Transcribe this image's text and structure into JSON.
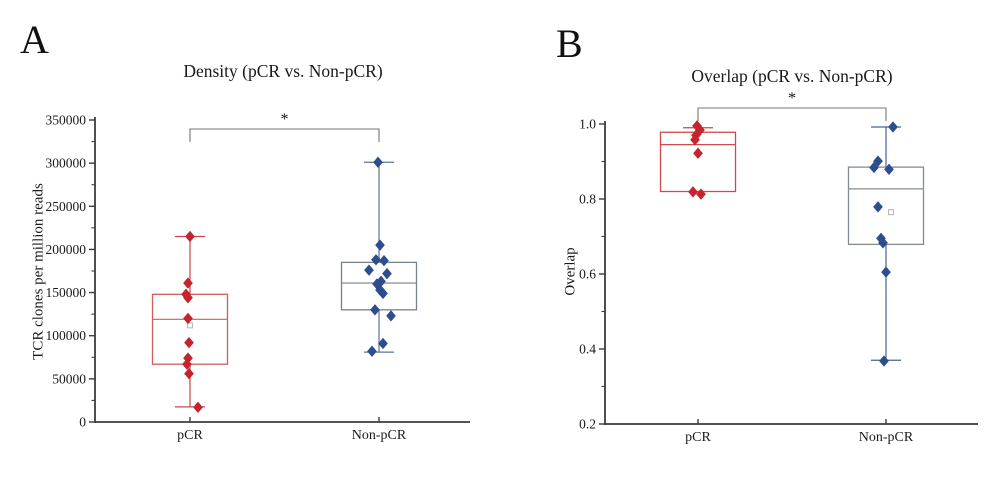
{
  "figure": {
    "background": "#ffffff",
    "axis_color": "#3c3c3c",
    "bracket_color": "#757575"
  },
  "chart_data": [
    {
      "type": "box",
      "panel_label": "A",
      "title": "Density (pCR vs. Non-pCR)",
      "ylabel": "TCR clones per million reads",
      "categories": [
        "pCR",
        "Non-pCR"
      ],
      "ylim": [
        0,
        350000
      ],
      "y_major_step": 50000,
      "y_minor_step": 25000,
      "y_tick_labels": [
        "0",
        "50000",
        "100000",
        "150000",
        "200000",
        "250000",
        "300000",
        "350000"
      ],
      "significance": "*",
      "grid": false,
      "groups": [
        {
          "name": "pCR",
          "point_color": "#c4242e",
          "box_color": "#d25c5c",
          "whisker_color": "#c94747",
          "q1": 67000,
          "median": 119000,
          "q3": 148000,
          "whisker_low": 17500,
          "whisker_high": 215000,
          "mean": 112000,
          "mean_dx": 0,
          "points": [
            [
              215000,
              0
            ],
            [
              161000,
              -2
            ],
            [
              148000,
              -4
            ],
            [
              144000,
              -2
            ],
            [
              120000,
              -2
            ],
            [
              92000,
              -1
            ],
            [
              74000,
              -2
            ],
            [
              67000,
              -3
            ],
            [
              56000,
              -1
            ],
            [
              17000,
              8
            ]
          ]
        },
        {
          "name": "Non-pCR",
          "point_color": "#2d4d8e",
          "box_color": "#76828e",
          "whisker_color": "#5d7394",
          "q1": 130000,
          "median": 161000,
          "q3": 185000,
          "whisker_low": 81000,
          "whisker_high": 301000,
          "mean": null,
          "mean_dx": 0,
          "points": [
            [
              301000,
              -1
            ],
            [
              205000,
              1
            ],
            [
              188000,
              -3
            ],
            [
              187000,
              5
            ],
            [
              176000,
              -10
            ],
            [
              172000,
              8
            ],
            [
              163000,
              2
            ],
            [
              160000,
              -2
            ],
            [
              153000,
              1
            ],
            [
              149000,
              4
            ],
            [
              130000,
              -4
            ],
            [
              123000,
              12
            ],
            [
              91000,
              4
            ],
            [
              82000,
              -7
            ]
          ]
        }
      ]
    },
    {
      "type": "box",
      "panel_label": "B",
      "title": "Overlap (pCR vs. Non-pCR)",
      "ylabel": "Overlap",
      "categories": [
        "pCR",
        "Non-pCR"
      ],
      "ylim": [
        0.2,
        1.0
      ],
      "y_major_step": 0.2,
      "y_minor_step": 0.1,
      "y_tick_labels": [
        "0.2",
        "0.4",
        "0.6",
        "0.8",
        "1.0"
      ],
      "significance": "*",
      "grid": false,
      "groups": [
        {
          "name": "pCR",
          "point_color": "#c4242e",
          "box_color": "#cc4a4a",
          "whisker_color": "#c94747",
          "q1": 0.82,
          "median": 0.945,
          "q3": 0.978,
          "whisker_low": null,
          "whisker_high": 0.99,
          "mean": null,
          "mean_dx": 0,
          "points": [
            [
              0.995,
              -1
            ],
            [
              0.984,
              2
            ],
            [
              0.97,
              -2
            ],
            [
              0.958,
              -3
            ],
            [
              0.922,
              0
            ],
            [
              0.819,
              -5
            ],
            [
              0.813,
              3
            ]
          ]
        },
        {
          "name": "Non-pCR",
          "point_color": "#2d4d8e",
          "box_color": "#848b93",
          "whisker_color": "#44639c",
          "q1": 0.679,
          "median": 0.827,
          "q3": 0.885,
          "whisker_low": 0.37,
          "whisker_high": 0.992,
          "mean": 0.765,
          "mean_dx": 5,
          "points": [
            [
              0.992,
              7
            ],
            [
              0.901,
              -8
            ],
            [
              0.884,
              -12
            ],
            [
              0.879,
              3
            ],
            [
              0.779,
              -8
            ],
            [
              0.695,
              -5
            ],
            [
              0.683,
              -3
            ],
            [
              0.605,
              0
            ],
            [
              0.368,
              -2
            ]
          ]
        }
      ]
    }
  ]
}
